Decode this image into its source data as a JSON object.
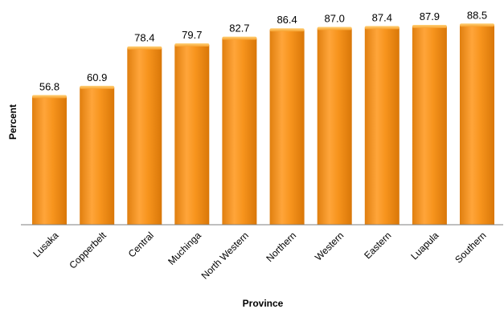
{
  "chart_data": {
    "type": "bar",
    "title": "",
    "xlabel": "Province",
    "ylabel": "Percent",
    "categories": [
      "Lusaka",
      "Copperbelt",
      "Central",
      "Muchinga",
      "North Western",
      "Northern",
      "Western",
      "Eastern",
      "Luapula",
      "Southern"
    ],
    "values": [
      56.8,
      60.9,
      78.4,
      79.7,
      82.7,
      86.4,
      87.0,
      87.4,
      87.9,
      88.5
    ],
    "value_labels": [
      "56.8",
      "60.9",
      "78.4",
      "79.7",
      "82.7",
      "86.4",
      "87.0",
      "87.4",
      "87.9",
      "88.5"
    ],
    "ylim": [
      0,
      100
    ],
    "grid": false,
    "legend": "none",
    "bar_color": "#f7941d",
    "bar_highlight": "#ffb552",
    "bar_shade": "#e07f0f",
    "baseline_color": "#7f7f7f"
  }
}
